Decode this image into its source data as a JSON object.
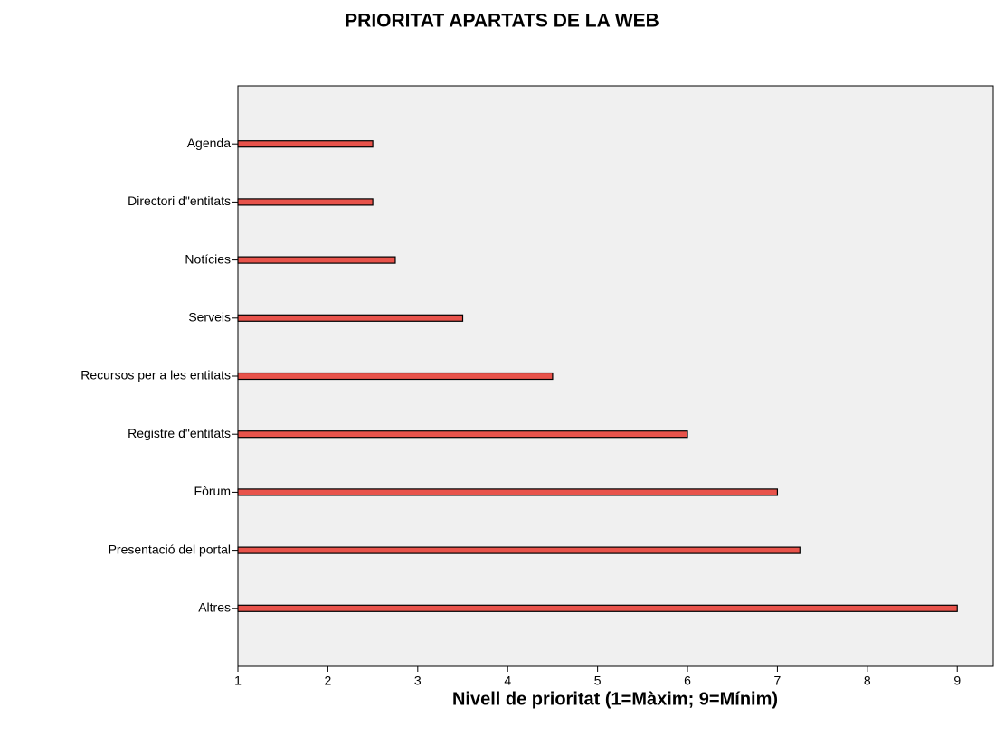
{
  "chart_data": {
    "type": "bar",
    "orientation": "horizontal",
    "title": "PRIORITAT APARTATS DE LA WEB",
    "x_label": "Nivell de prioritat (1=Màxim; 9=Mínim)",
    "categories": [
      "Agenda",
      "Directori d\"entitats",
      "Notícies",
      "Serveis",
      "Recursos per a les entitats",
      "Registre d\"entitats",
      "Fòrum",
      "Presentació del portal",
      "Altres"
    ],
    "values": [
      2.5,
      2.5,
      2.75,
      3.5,
      4.5,
      6,
      7,
      7.25,
      9
    ],
    "color": "#e8534b",
    "xlim": [
      1,
      9.4
    ],
    "xticks": [
      1,
      2,
      3,
      4,
      5,
      6,
      7,
      8,
      9
    ],
    "grid": false
  }
}
